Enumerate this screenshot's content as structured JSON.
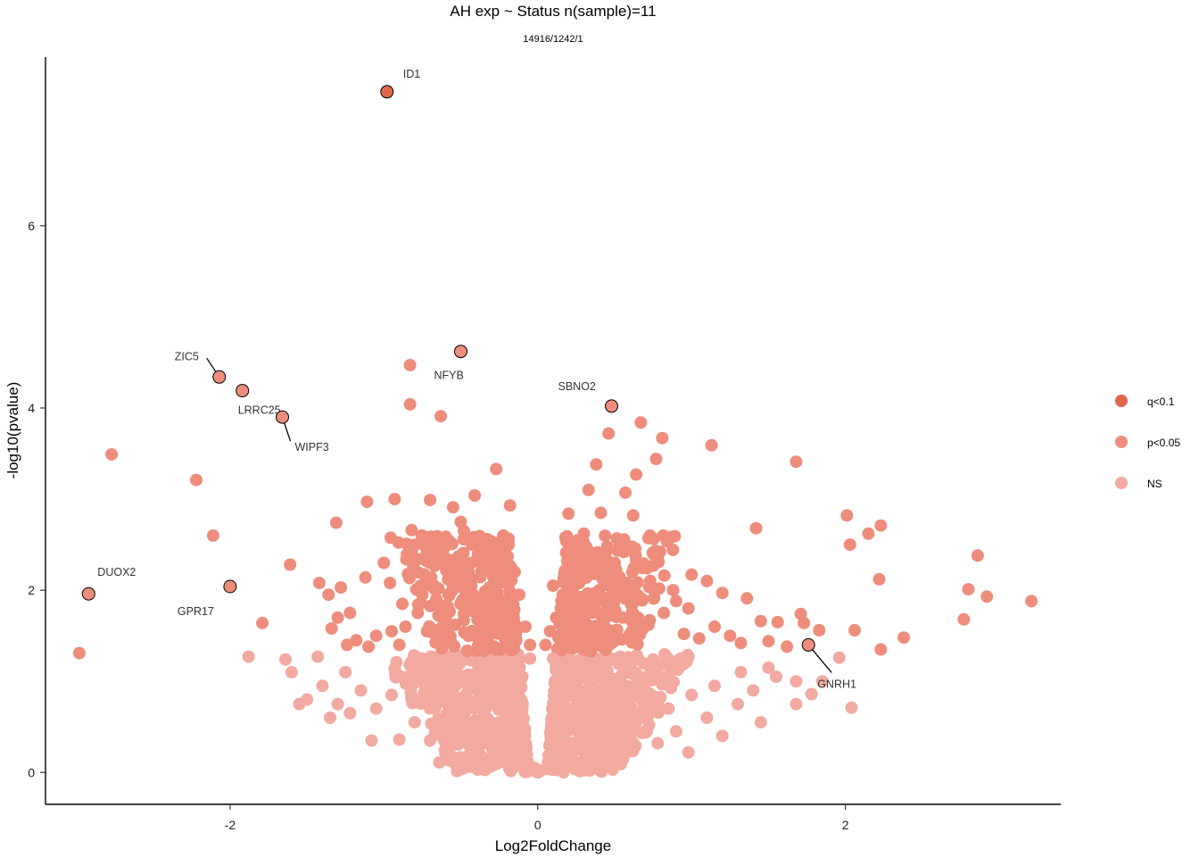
{
  "chart_data": {
    "type": "scatter",
    "title": "AH exp ~ Status n(sample)=11",
    "subtitle": "14916/1242/1",
    "xlabel": "Log2FoldChange",
    "ylabel": "-log10(pvalue)",
    "xlim": [
      -3.2,
      3.4
    ],
    "ylim": [
      -0.35,
      7.85
    ],
    "xticks": [
      -2,
      0,
      2
    ],
    "yticks": [
      0,
      2,
      4,
      6
    ],
    "grid": false,
    "legend_position": "right",
    "colors": {
      "q<0.1": "#E0684C",
      "p<0.05": "#EE8D7C",
      "NS": "#F2A9A0"
    },
    "legend": [
      {
        "label": "q<0.1",
        "color": "#E0684C"
      },
      {
        "label": "p<0.05",
        "color": "#EE8D7C"
      },
      {
        "label": "NS",
        "color": "#F2A9A0"
      }
    ],
    "labeled_points": [
      {
        "gene": "ID1",
        "x": -0.98,
        "y": 7.47,
        "group": "q<0.1"
      },
      {
        "gene": "NFYB",
        "x": -0.5,
        "y": 4.62,
        "group": "p<0.05"
      },
      {
        "gene": "ZIC5",
        "x": -2.07,
        "y": 4.34,
        "group": "p<0.05"
      },
      {
        "gene": "LRRC25",
        "x": -1.92,
        "y": 4.19,
        "group": "p<0.05"
      },
      {
        "gene": "WIPF3",
        "x": -1.66,
        "y": 3.9,
        "group": "p<0.05"
      },
      {
        "gene": "SBNO2",
        "x": 0.48,
        "y": 4.02,
        "group": "p<0.05"
      },
      {
        "gene": "DUOX2",
        "x": -2.92,
        "y": 1.96,
        "group": "p<0.05"
      },
      {
        "gene": "GPR17",
        "x": -2.0,
        "y": 2.04,
        "group": "p<0.05"
      },
      {
        "gene": "GNRH1",
        "x": 1.76,
        "y": 1.4,
        "group": "p<0.05"
      }
    ],
    "series": [
      {
        "name": "p<0.05",
        "points": [
          [
            -0.83,
            4.47
          ],
          [
            -0.83,
            4.04
          ],
          [
            -0.63,
            3.91
          ],
          [
            -2.77,
            3.49
          ],
          [
            -2.22,
            3.21
          ],
          [
            -2.11,
            2.6
          ],
          [
            -1.61,
            2.28
          ],
          [
            -1.79,
            1.64
          ],
          [
            -2.98,
            1.31
          ],
          [
            -1.31,
            2.74
          ],
          [
            -1.11,
            2.97
          ],
          [
            -0.93,
            3.0
          ],
          [
            -0.82,
            2.66
          ],
          [
            -0.7,
            2.99
          ],
          [
            -0.55,
            2.91
          ],
          [
            -0.41,
            3.04
          ],
          [
            -0.27,
            3.33
          ],
          [
            -0.18,
            2.93
          ],
          [
            -0.48,
            2.65
          ],
          [
            -0.6,
            2.48
          ],
          [
            0.46,
            3.72
          ],
          [
            0.67,
            3.84
          ],
          [
            0.81,
            3.67
          ],
          [
            0.77,
            3.44
          ],
          [
            0.64,
            3.27
          ],
          [
            0.38,
            3.38
          ],
          [
            0.33,
            3.1
          ],
          [
            0.57,
            3.07
          ],
          [
            0.62,
            2.82
          ],
          [
            0.41,
            2.85
          ],
          [
            0.2,
            2.84
          ],
          [
            0.18,
            2.58
          ],
          [
            0.73,
            2.6
          ],
          [
            0.87,
            2.58
          ],
          [
            1.13,
            3.59
          ],
          [
            1.68,
            3.41
          ],
          [
            1.42,
            2.68
          ],
          [
            2.01,
            2.82
          ],
          [
            2.03,
            2.5
          ],
          [
            2.15,
            2.62
          ],
          [
            2.23,
            2.71
          ],
          [
            2.22,
            2.12
          ],
          [
            2.86,
            2.38
          ],
          [
            2.8,
            2.01
          ],
          [
            2.92,
            1.93
          ],
          [
            2.77,
            1.68
          ],
          [
            3.21,
            1.88
          ],
          [
            2.38,
            1.48
          ],
          [
            2.23,
            1.35
          ],
          [
            2.06,
            1.56
          ],
          [
            1.71,
            1.74
          ],
          [
            1.73,
            1.64
          ],
          [
            1.83,
            1.56
          ],
          [
            1.56,
            1.65
          ],
          [
            1.45,
            1.66
          ],
          [
            1.36,
            1.91
          ],
          [
            1.2,
            1.97
          ],
          [
            1.1,
            2.1
          ],
          [
            1.0,
            2.17
          ],
          [
            0.9,
            1.88
          ],
          [
            0.72,
            1.62
          ],
          [
            0.6,
            1.52
          ],
          [
            0.5,
            1.45
          ],
          [
            0.42,
            1.38
          ],
          [
            0.3,
            1.35
          ],
          [
            0.2,
            1.6
          ],
          [
            0.15,
            1.8
          ],
          [
            0.1,
            2.05
          ],
          [
            0.25,
            2.2
          ],
          [
            0.35,
            2.4
          ],
          [
            -0.12,
            1.95
          ],
          [
            -0.2,
            2.1
          ],
          [
            -0.3,
            2.3
          ],
          [
            -0.38,
            2.35
          ],
          [
            -0.45,
            2.2
          ],
          [
            -0.55,
            2.05
          ],
          [
            -0.66,
            1.9
          ],
          [
            -0.78,
            1.75
          ],
          [
            -0.86,
            1.6
          ],
          [
            -0.95,
            1.55
          ],
          [
            -1.05,
            1.5
          ],
          [
            -1.18,
            1.45
          ],
          [
            -1.24,
            1.4
          ],
          [
            -1.3,
            1.7
          ],
          [
            -1.36,
            1.95
          ],
          [
            -1.42,
            2.08
          ],
          [
            -1.28,
            2.03
          ],
          [
            -1.12,
            2.14
          ],
          [
            -1.0,
            2.3
          ],
          [
            -0.96,
            2.08
          ],
          [
            -1.22,
            1.75
          ],
          [
            -1.34,
            1.58
          ],
          [
            -0.88,
            1.85
          ],
          [
            -0.75,
            1.95
          ],
          [
            -0.7,
            2.3
          ],
          [
            -0.62,
            2.55
          ],
          [
            -0.5,
            2.75
          ],
          [
            -0.42,
            2.58
          ],
          [
            -0.33,
            2.5
          ],
          [
            -0.25,
            2.4
          ],
          [
            -0.15,
            2.2
          ],
          [
            -0.08,
            1.6
          ],
          [
            -0.05,
            1.4
          ],
          [
            0.05,
            1.4
          ],
          [
            0.08,
            1.55
          ],
          [
            0.12,
            1.7
          ],
          [
            0.3,
            2.62
          ],
          [
            0.5,
            2.3
          ],
          [
            0.58,
            2.08
          ],
          [
            0.68,
            1.9
          ],
          [
            0.82,
            1.75
          ],
          [
            0.95,
            1.52
          ],
          [
            1.05,
            1.47
          ],
          [
            1.25,
            1.5
          ],
          [
            1.32,
            1.42
          ],
          [
            1.5,
            1.44
          ],
          [
            1.62,
            1.38
          ],
          [
            0.88,
            2.0
          ],
          [
            0.98,
            1.8
          ],
          [
            1.15,
            1.6
          ],
          [
            0.4,
            2.0
          ],
          [
            0.45,
            1.8
          ],
          [
            0.55,
            1.7
          ],
          [
            -0.2,
            1.7
          ],
          [
            -0.35,
            1.6
          ],
          [
            -0.45,
            1.5
          ],
          [
            -0.6,
            1.45
          ],
          [
            -0.72,
            1.55
          ],
          [
            -0.9,
            1.4
          ],
          [
            -1.1,
            1.38
          ]
        ]
      },
      {
        "name": "NS",
        "points": [
          [
            -1.88,
            1.27
          ],
          [
            -1.64,
            1.24
          ],
          [
            -1.43,
            1.27
          ],
          [
            -1.6,
            1.1
          ],
          [
            -1.5,
            0.8
          ],
          [
            -1.55,
            0.75
          ],
          [
            -1.35,
            0.6
          ],
          [
            -1.22,
            0.65
          ],
          [
            -1.08,
            0.35
          ],
          [
            -0.9,
            0.36
          ],
          [
            -0.64,
            0.11
          ],
          [
            -0.45,
            0.12
          ],
          [
            -0.3,
            0.15
          ],
          [
            -0.15,
            0.2
          ],
          [
            0.1,
            0.12
          ],
          [
            0.3,
            0.1
          ],
          [
            0.55,
            0.2
          ],
          [
            0.78,
            0.32
          ],
          [
            0.98,
            0.22
          ],
          [
            1.2,
            0.4
          ],
          [
            1.45,
            0.55
          ],
          [
            1.68,
            0.75
          ],
          [
            1.85,
            1.0
          ],
          [
            1.96,
            1.26
          ],
          [
            2.04,
            0.71
          ],
          [
            1.68,
            1.0
          ],
          [
            1.5,
            1.15
          ],
          [
            1.32,
            1.1
          ],
          [
            1.15,
            0.95
          ],
          [
            1.0,
            0.85
          ],
          [
            0.85,
            0.7
          ],
          [
            0.7,
            0.6
          ],
          [
            0.6,
            0.5
          ],
          [
            0.5,
            0.4
          ],
          [
            0.4,
            0.3
          ],
          [
            0.3,
            0.5
          ],
          [
            0.25,
            0.7
          ],
          [
            0.2,
            0.9
          ],
          [
            0.15,
            1.1
          ],
          [
            0.1,
            1.25
          ],
          [
            -0.05,
            1.25
          ],
          [
            -0.1,
            1.05
          ],
          [
            -0.15,
            0.85
          ],
          [
            -0.2,
            0.65
          ],
          [
            -0.25,
            0.45
          ],
          [
            -0.35,
            0.55
          ],
          [
            -0.45,
            0.75
          ],
          [
            -0.55,
            0.95
          ],
          [
            -0.65,
            1.15
          ],
          [
            -0.75,
            1.25
          ],
          [
            -0.85,
            1.05
          ],
          [
            -0.95,
            0.85
          ],
          [
            -1.05,
            0.7
          ],
          [
            -1.15,
            0.9
          ],
          [
            -1.25,
            1.1
          ],
          [
            -1.3,
            0.75
          ],
          [
            -1.4,
            0.95
          ],
          [
            -0.8,
            0.55
          ],
          [
            -0.7,
            0.35
          ],
          [
            -0.58,
            0.25
          ],
          [
            0.9,
            0.45
          ],
          [
            1.1,
            0.6
          ],
          [
            1.3,
            0.75
          ],
          [
            1.4,
            0.9
          ],
          [
            1.55,
            1.05
          ],
          [
            -0.02,
            0.05
          ],
          [
            0.02,
            0.02
          ],
          [
            0.0,
            0.0
          ],
          [
            -0.5,
            0.6
          ],
          [
            0.45,
            0.65
          ],
          [
            0.65,
            0.9
          ],
          [
            0.8,
            1.05
          ],
          [
            0.95,
            1.2
          ],
          [
            -0.35,
            1.0
          ],
          [
            0.35,
            1.05
          ],
          [
            -0.12,
            0.4
          ],
          [
            0.15,
            0.35
          ],
          [
            -0.25,
            0.25
          ],
          [
            0.22,
            0.22
          ],
          [
            1.78,
            0.86
          ]
        ]
      },
      {
        "name": "q<0.1",
        "points": [
          [
            -0.98,
            7.47
          ]
        ]
      }
    ]
  }
}
